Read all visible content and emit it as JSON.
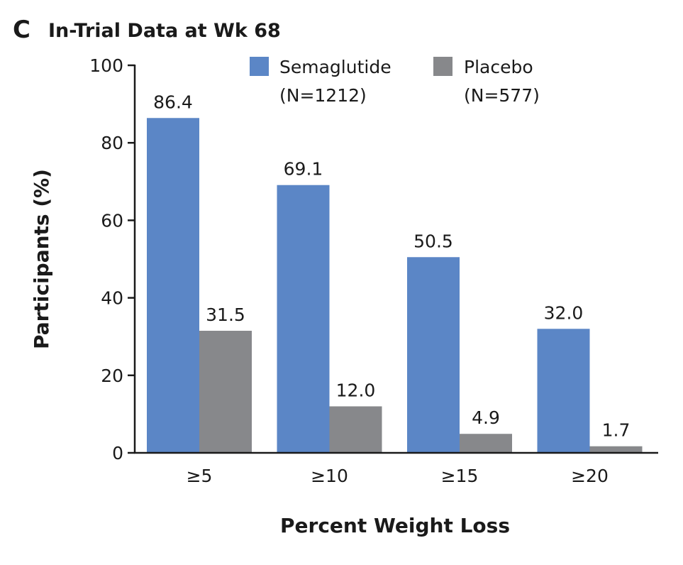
{
  "panel_letter": "C",
  "colors": {
    "semaglutide": "#5b86c6",
    "placebo": "#87888b",
    "axis": "#1a1a1a"
  },
  "chart_data": {
    "type": "bar",
    "title": "In-Trial Data at Wk 68",
    "xlabel": "Percent Weight Loss",
    "ylabel": "Participants (%)",
    "ylim": [
      0,
      100
    ],
    "yticks": [
      0,
      20,
      40,
      60,
      80,
      100
    ],
    "categories": [
      "≥5",
      "≥10",
      "≥15",
      "≥20"
    ],
    "legend_position": "top-right",
    "series": [
      {
        "name": "Semaglutide",
        "name_line2": "(N=1212)",
        "color": "#5b86c6",
        "values": [
          86.4,
          69.1,
          50.5,
          32.0
        ],
        "labels": [
          "86.4",
          "69.1",
          "50.5",
          "32.0"
        ]
      },
      {
        "name": "Placebo",
        "name_line2": "(N=577)",
        "color": "#87888b",
        "values": [
          31.5,
          12.0,
          4.9,
          1.7
        ],
        "labels": [
          "31.5",
          "12.0",
          "4.9",
          "1.7"
        ]
      }
    ]
  }
}
